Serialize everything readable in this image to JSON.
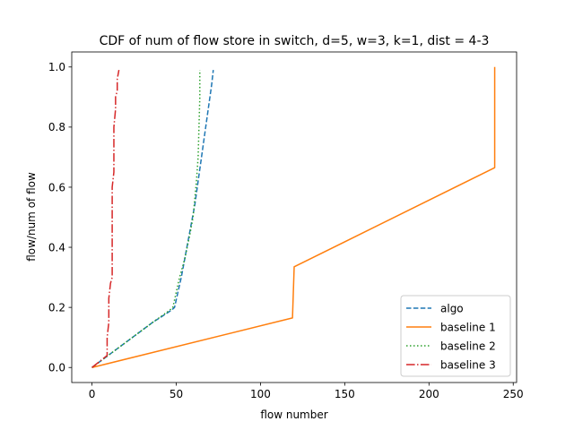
{
  "chart_data": {
    "type": "line",
    "title": "CDF of num of flow store in switch, d=5, w=3, k=1, dist = 4-3",
    "xlabel": "flow number",
    "ylabel": "flow/num of flow",
    "xlim": [
      -12,
      252
    ],
    "ylim": [
      -0.05,
      1.05
    ],
    "xticks": [
      0,
      50,
      100,
      150,
      200,
      250
    ],
    "yticks": [
      0.0,
      0.2,
      0.4,
      0.6,
      0.8,
      1.0
    ],
    "xtick_labels": [
      "0",
      "50",
      "100",
      "150",
      "200",
      "250"
    ],
    "ytick_labels": [
      "0.0",
      "0.2",
      "0.4",
      "0.6",
      "0.8",
      "1.0"
    ],
    "legend_position": "lower-right",
    "grid": false,
    "series": [
      {
        "name": "algo",
        "color": "#1f77b4",
        "style": "dashed",
        "x": [
          0,
          12,
          24,
          36,
          47,
          49,
          51,
          53,
          55,
          57,
          59,
          61,
          63,
          65,
          67,
          69,
          71,
          72
        ],
        "y": [
          0.0,
          0.05,
          0.1,
          0.15,
          0.19,
          0.2,
          0.25,
          0.3,
          0.36,
          0.42,
          0.48,
          0.54,
          0.62,
          0.7,
          0.78,
          0.86,
          0.94,
          0.99
        ]
      },
      {
        "name": "baseline 1",
        "color": "#ff7f0e",
        "style": "solid",
        "x": [
          0,
          119,
          120,
          239,
          239
        ],
        "y": [
          0.0,
          0.165,
          0.335,
          0.665,
          1.0
        ]
      },
      {
        "name": "baseline 2",
        "color": "#2ca02c",
        "style": "dotted",
        "x": [
          0,
          12,
          24,
          36,
          46,
          48,
          50,
          52,
          55,
          58,
          60,
          61,
          62,
          63,
          63.5,
          64,
          64
        ],
        "y": [
          0.0,
          0.05,
          0.1,
          0.15,
          0.19,
          0.2,
          0.25,
          0.3,
          0.36,
          0.44,
          0.5,
          0.56,
          0.62,
          0.7,
          0.8,
          0.9,
          0.99
        ]
      },
      {
        "name": "baseline 3",
        "color": "#d62728",
        "style": "dashdot",
        "x": [
          0,
          9,
          9,
          10,
          10,
          11,
          12,
          12,
          12,
          12,
          13,
          13,
          13,
          14,
          14,
          15,
          15,
          16
        ],
        "y": [
          0.0,
          0.04,
          0.1,
          0.15,
          0.23,
          0.28,
          0.3,
          0.4,
          0.5,
          0.6,
          0.65,
          0.7,
          0.8,
          0.86,
          0.9,
          0.92,
          0.96,
          0.99
        ]
      }
    ]
  }
}
